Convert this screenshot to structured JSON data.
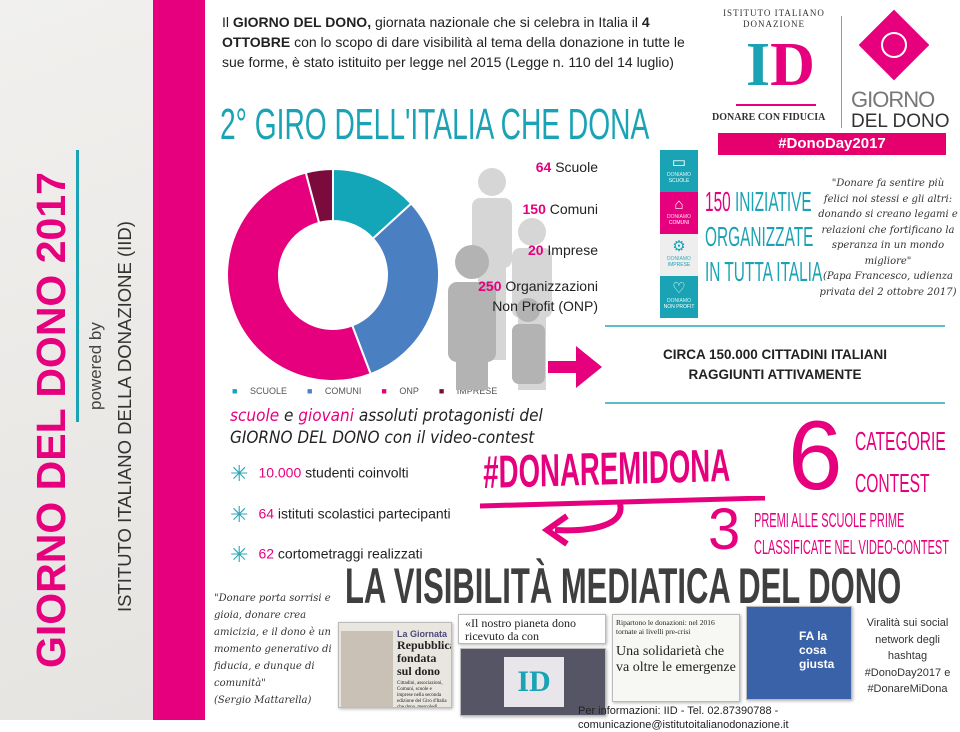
{
  "sidebar": {
    "title": "GIORNO DEL DONO 2017",
    "powered_by": "powered by",
    "org": "ISTITUTO ITALIANO DELLA DONAZIONE (IID)"
  },
  "intro": {
    "p1": "Il ",
    "b1": "GIORNO DEL DONO,",
    "p2": " giornata nazionale che si celebra in Italia il ",
    "b2": "4 OTTOBRE",
    "p3": " con lo scopo di dare visibilità al tema della donazione in tutte le sue forme, è stato istituito per legge nel 2015 (Legge n. 110 del 14 luglio)"
  },
  "title": "2° GIRO DELL'ITALIA CHE DONA",
  "logo": {
    "arc_text": "ISTITUTO ITALIANO DONAZIONE",
    "letters": "ID",
    "tagline": "DONARE CON FIDUCIA",
    "giorno": "GIORNO",
    "del_dono": "DEL DONO",
    "hashtag": "#DonoDay2017"
  },
  "chart_data": {
    "type": "pie",
    "donut": true,
    "categories": [
      "SCUOLE",
      "COMUNI",
      "ONP",
      "IMPRESE"
    ],
    "values": [
      64,
      150,
      250,
      20
    ],
    "colors": [
      "#12a6b8",
      "#4a7fc1",
      "#e6007e",
      "#7a0b3c"
    ],
    "legend": "bottom"
  },
  "stats": [
    {
      "n": "64",
      "label": "Scuole"
    },
    {
      "n": "150",
      "label": "Comuni"
    },
    {
      "n": "20",
      "label": "Imprese"
    },
    {
      "n": "250",
      "label": "Organizzazioni",
      "label2": "Non Profit (ONP)"
    }
  ],
  "tiles": [
    {
      "icon": "book-icon",
      "top": "DONIAMO",
      "label": "SCUOLE",
      "color": "#1aa3b5"
    },
    {
      "icon": "building-icon",
      "top": "DONIAMO",
      "label": "COMUNI",
      "color": "#e6007e"
    },
    {
      "icon": "gears-icon",
      "top": "DONIAMO",
      "label": "IMPRESE",
      "color": "#eeeeee"
    },
    {
      "icon": "heart-icon",
      "top": "DONIAMO",
      "label": "NON PROFIT",
      "color": "#1aa3b5"
    }
  ],
  "initiatives": {
    "n": "150",
    "l1": " INIZIATIVE",
    "l2": "ORGANIZZATE",
    "l3": "IN TUTTA ITALIA"
  },
  "quote_pope": {
    "text": "\"Donare fa sentire più felici noi stessi e gli altri: donando si creano legami e relazioni che fortificano la speranza in un mondo migliore\"",
    "author": "(Papa Francesco, udienza privata del 2 ottobre 2017)"
  },
  "citizens": {
    "l1": "CIRCA 150.000 CITTADINI ITALIANI",
    "l2": "RAGGIUNTI ATTIVAMENTE"
  },
  "video": {
    "w1": "scuole",
    "w2": " e ",
    "w3": "giovani",
    "w4": " assoluti protagonisti del",
    "l2a": "GIORNO DEL DONO",
    "l2b": " con il video-contest"
  },
  "bullets": [
    {
      "n": "10.000",
      "t": " studenti coinvolti"
    },
    {
      "n": "64",
      "t": " istituti scolastici partecipanti"
    },
    {
      "n": "62",
      "t": " cortometraggi realizzati"
    }
  ],
  "hashtag_contest": "#DONAREMIDONA",
  "categories": {
    "n": "6",
    "l1": "CATEGORIE",
    "l2": "CONTEST"
  },
  "prizes": {
    "n": "3",
    "l1": "PREMI ALLE SCUOLE PRIME",
    "l2": "CLASSIFICATE NEL VIDEO-CONTEST"
  },
  "media_title": "LA VISIBILITÀ MEDIATICA DEL DONO",
  "quote_mattarella": {
    "text": "\"Donare porta sorrisi e gioia, donare crea amicizia, e il dono è un momento generativo di fiducia, e dunque di comunità\"",
    "author": "(Sergio Mattarella)"
  },
  "press": {
    "a_head": "La Giornata",
    "a_title": "Repubblica fondata sul dono",
    "a_body": "Cittadini, associazioni, Comuni, scuole e imprese nella seconda edizione del Giro d'Italia che dona, mercoledì.",
    "b_title": "«Il nostro pianeta dono ricevuto da con",
    "c_head": "Ripartono le donazioni: nel 2016 tornate ai livelli pre-crisi",
    "c_title": "Una solidarietà che va oltre le emergenze",
    "d_title": "FA la cosa giusta"
  },
  "viral": {
    "text": "Viralità sui social network degli hashtag",
    "h1": "#DonoDay2017 e",
    "h2": "#DonareMiDona"
  },
  "footer": "Per informazioni: IID - Tel. 02.87390788 - comunicazione@istitutoitalianodonazione.it"
}
